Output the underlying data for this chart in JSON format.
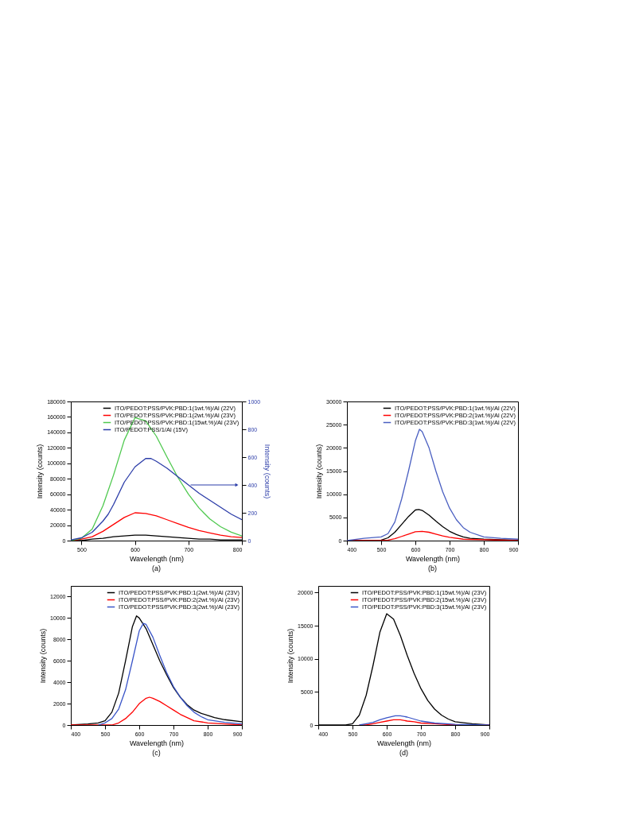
{
  "chart_data": [
    {
      "type": "line",
      "xlabel": "Wavelength (nm)",
      "ylabel": "Intensity (counts)",
      "y2label": "Intensity (counts)",
      "annotations": [
        "(a)"
      ],
      "xlim": [
        480,
        800
      ],
      "xticks": [
        500,
        600,
        700,
        800
      ],
      "ylim": [
        0,
        180000
      ],
      "yticks": [
        0,
        20000,
        40000,
        60000,
        80000,
        100000,
        120000,
        140000,
        160000,
        180000
      ],
      "y2lim": [
        0,
        1000
      ],
      "y2ticks": [
        0,
        200,
        400,
        600,
        800,
        1000
      ],
      "grid": false,
      "legend": "top right",
      "series": [
        {
          "name": "ITO/PEDOT:PSS/PVK:PBD:1(1wt.%)/Al (22V)",
          "color": "#000000",
          "x": [
            480,
            500,
            520,
            540,
            560,
            580,
            600,
            620,
            640,
            660,
            680,
            700,
            720,
            740,
            760,
            780,
            800
          ],
          "values": [
            0,
            0,
            2000,
            3000,
            5000,
            6000,
            7000,
            7000,
            6000,
            5000,
            4000,
            3000,
            2000,
            2000,
            1000,
            1000,
            1000
          ]
        },
        {
          "name": "ITO/PEDOT:PSS/PVK:PBD:1(2wt.%)/Al (23V)",
          "color": "#ff0000",
          "x": [
            480,
            500,
            520,
            540,
            560,
            580,
            600,
            620,
            640,
            660,
            680,
            700,
            720,
            740,
            760,
            780,
            800
          ],
          "values": [
            0,
            2000,
            5000,
            12000,
            21000,
            30000,
            36000,
            35000,
            32000,
            27000,
            22000,
            17000,
            13000,
            10000,
            7000,
            5000,
            4000
          ]
        },
        {
          "name": "ITO/PEDOT:PSS/PVK:PBD:1(15wt.%)/Al (23V)",
          "color": "#4fc94f",
          "x": [
            480,
            500,
            520,
            540,
            560,
            580,
            600,
            620,
            640,
            660,
            680,
            700,
            720,
            740,
            760,
            780,
            800
          ],
          "values": [
            0,
            3000,
            15000,
            45000,
            85000,
            130000,
            159000,
            155000,
            135000,
            108000,
            82000,
            60000,
            42000,
            28000,
            18000,
            11000,
            6000
          ]
        },
        {
          "name": "ITO/PEDOT:PSS/1/Al (15V)",
          "color": "#2b3ca8",
          "axis": "y2",
          "x": [
            480,
            500,
            520,
            540,
            550,
            560,
            580,
            600,
            620,
            630,
            640,
            660,
            680,
            700,
            720,
            740,
            760,
            780,
            800
          ],
          "values": [
            5,
            20,
            60,
            140,
            190,
            260,
            420,
            530,
            590,
            590,
            570,
            520,
            460,
            400,
            340,
            290,
            240,
            190,
            150
          ]
        }
      ]
    },
    {
      "type": "line",
      "xlabel": "Wavelength (nm)",
      "ylabel": "Intensity (counts)",
      "annotations": [
        "(b)"
      ],
      "xlim": [
        400,
        900
      ],
      "xticks": [
        400,
        500,
        600,
        700,
        800,
        900
      ],
      "ylim": [
        0,
        30000
      ],
      "yticks": [
        0,
        5000,
        10000,
        15000,
        20000,
        25000,
        30000
      ],
      "grid": false,
      "legend": "top right",
      "series": [
        {
          "name": "ITO/PEDOT:PSS/PVK:PBD:1(1wt.%)/Al (22V)",
          "color": "#000000",
          "x": [
            400,
            450,
            500,
            520,
            540,
            560,
            580,
            600,
            610,
            620,
            640,
            660,
            680,
            700,
            720,
            740,
            760,
            800,
            850,
            900
          ],
          "values": [
            0,
            0,
            100,
            600,
            1800,
            3500,
            5200,
            6600,
            6700,
            6500,
            5500,
            4200,
            3000,
            2000,
            1300,
            800,
            500,
            300,
            200,
            100
          ]
        },
        {
          "name": "ITO/PEDOT:PSS/PVK:PBD:2(1wt.%)/Al (22V)",
          "color": "#ff0000",
          "x": [
            400,
            500,
            520,
            540,
            560,
            580,
            600,
            620,
            640,
            660,
            680,
            700,
            740,
            800,
            900
          ],
          "values": [
            0,
            0,
            100,
            400,
            900,
            1400,
            1900,
            2000,
            1800,
            1400,
            1000,
            700,
            300,
            200,
            0
          ]
        },
        {
          "name": "ITO/PEDOT:PSS/PVK:PBD:3(1wt.%)/Al (22V)",
          "color": "#4a5fc1",
          "x": [
            400,
            450,
            500,
            520,
            540,
            560,
            580,
            600,
            612,
            620,
            640,
            660,
            680,
            700,
            720,
            740,
            760,
            800,
            850,
            900
          ],
          "values": [
            0,
            500,
            800,
            1500,
            4000,
            9000,
            15000,
            21500,
            24000,
            23500,
            20000,
            15000,
            10500,
            7000,
            4500,
            2800,
            1800,
            800,
            500,
            300
          ]
        }
      ]
    },
    {
      "type": "line",
      "xlabel": "Wavelength (nm)",
      "ylabel": "Intensity (counts)",
      "annotations": [
        "(c)"
      ],
      "xlim": [
        400,
        900
      ],
      "xticks": [
        400,
        500,
        600,
        700,
        800,
        900
      ],
      "ylim": [
        0,
        13000
      ],
      "yticks": [
        0,
        2000,
        4000,
        6000,
        8000,
        10000,
        12000
      ],
      "grid": false,
      "legend": "top right",
      "series": [
        {
          "name": "ITO/PEDOT:PSS/PVK:PBD:1(2wt.%)/Al (23V)",
          "color": "#000000",
          "x": [
            400,
            450,
            480,
            500,
            520,
            540,
            560,
            580,
            592,
            600,
            620,
            640,
            660,
            680,
            700,
            720,
            740,
            760,
            780,
            800,
            820,
            850,
            900
          ],
          "values": [
            0,
            100,
            200,
            400,
            1200,
            3000,
            6000,
            9200,
            10200,
            10000,
            9000,
            7500,
            6000,
            4700,
            3500,
            2600,
            1900,
            1400,
            1100,
            900,
            700,
            500,
            300
          ]
        },
        {
          "name": "ITO/PEDOT:PSS/PVK:PBD:2(2wt.%)/Al (23V)",
          "color": "#ff0000",
          "x": [
            400,
            500,
            520,
            540,
            560,
            580,
            600,
            620,
            630,
            640,
            660,
            680,
            700,
            720,
            740,
            760,
            800,
            850,
            900
          ],
          "values": [
            0,
            0,
            0,
            200,
            600,
            1200,
            2000,
            2500,
            2600,
            2500,
            2200,
            1800,
            1400,
            1000,
            700,
            400,
            200,
            100,
            0
          ]
        },
        {
          "name": "ITO/PEDOT:PSS/PVK:PBD:3(2wt.%)/Al (23V)",
          "color": "#3a55c8",
          "x": [
            480,
            500,
            520,
            540,
            560,
            580,
            600,
            612,
            620,
            640,
            660,
            680,
            700,
            720,
            740,
            760,
            780,
            800,
            850,
            900
          ],
          "values": [
            0,
            200,
            600,
            1500,
            3300,
            6000,
            8800,
            9500,
            9400,
            8200,
            6500,
            4900,
            3600,
            2600,
            1800,
            1200,
            800,
            500,
            250,
            100
          ]
        }
      ]
    },
    {
      "type": "line",
      "xlabel": "Wavelength (nm)",
      "ylabel": "Intensity (counts)",
      "annotations": [
        "(d)"
      ],
      "xlim": [
        400,
        900
      ],
      "xticks": [
        400,
        500,
        600,
        700,
        800,
        900
      ],
      "ylim": [
        0,
        21000
      ],
      "yticks": [
        0,
        5000,
        10000,
        15000,
        20000
      ],
      "grid": false,
      "legend": "top right",
      "series": [
        {
          "name": "ITO/PEDOT:PSS/PVK:PBD:1(15wt.%)/Al (23V)",
          "color": "#000000",
          "x": [
            400,
            480,
            500,
            520,
            540,
            560,
            580,
            600,
            620,
            640,
            660,
            680,
            700,
            720,
            740,
            760,
            780,
            800,
            850,
            900
          ],
          "values": [
            0,
            0,
            200,
            1500,
            4500,
            9000,
            14000,
            16800,
            16000,
            13500,
            10500,
            7800,
            5500,
            3700,
            2400,
            1500,
            900,
            500,
            200,
            0
          ]
        },
        {
          "name": "ITO/PEDOT:PSS/PVK:PBD:2(15wt.%)/Al (23V)",
          "color": "#ff0000",
          "x": [
            520,
            540,
            560,
            580,
            600,
            620,
            640,
            660,
            680,
            700,
            740,
            800,
            900
          ],
          "values": [
            0,
            0,
            200,
            400,
            600,
            800,
            800,
            600,
            500,
            300,
            200,
            0,
            0
          ]
        },
        {
          "name": "ITO/PEDOT:PSS/PVK:PBD:3(15wt.%)/Al (23V)",
          "color": "#3a55c8",
          "x": [
            520,
            540,
            560,
            580,
            600,
            625,
            640,
            660,
            680,
            700,
            740,
            800,
            900
          ],
          "values": [
            0,
            200,
            400,
            800,
            1100,
            1400,
            1400,
            1200,
            900,
            600,
            300,
            100,
            0
          ]
        }
      ]
    }
  ]
}
